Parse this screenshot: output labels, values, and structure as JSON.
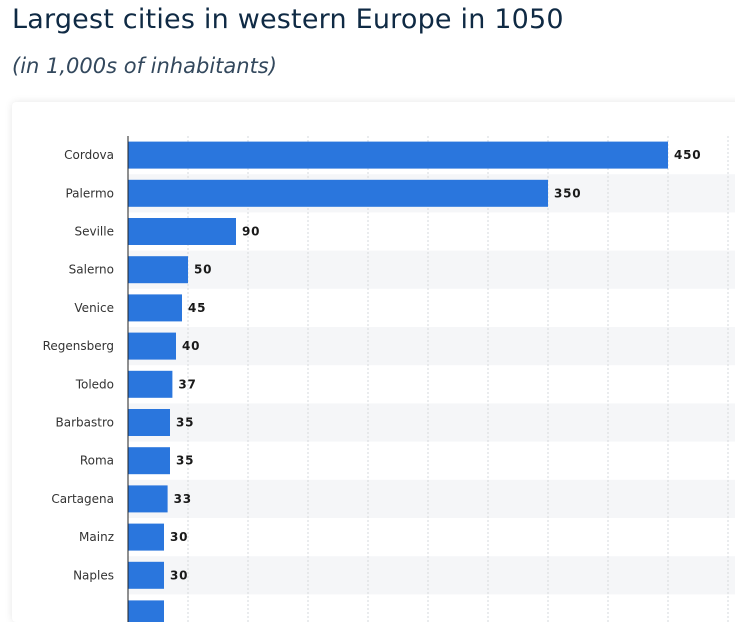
{
  "header": {
    "title": "Largest cities in western Europe in 1050",
    "subtitle": "(in 1,000s of inhabitants)"
  },
  "colors": {
    "bar": "#2a76dd",
    "band": "#f5f6f8",
    "grid": "#d6d9dd",
    "axis": "#222222"
  },
  "chart_data": {
    "type": "bar",
    "orientation": "horizontal",
    "title": "Largest cities in western Europe in 1050",
    "subtitle": "(in 1,000s of inhabitants)",
    "categories": [
      "Cordova",
      "Palermo",
      "Seville",
      "Salerno",
      "Venice",
      "Regensberg",
      "Toledo",
      "Barbastro",
      "Roma",
      "Cartagena",
      "Mainz",
      "Naples"
    ],
    "values": [
      450,
      350,
      90,
      50,
      45,
      40,
      37,
      35,
      35,
      33,
      30,
      30
    ],
    "value_labels": [
      "450",
      "350",
      "90",
      "50",
      "45",
      "40",
      "37",
      "35",
      "35",
      "33",
      "30",
      "30"
    ],
    "xlim": [
      0,
      500
    ],
    "grid": true,
    "xlabel": "",
    "ylabel": ""
  }
}
